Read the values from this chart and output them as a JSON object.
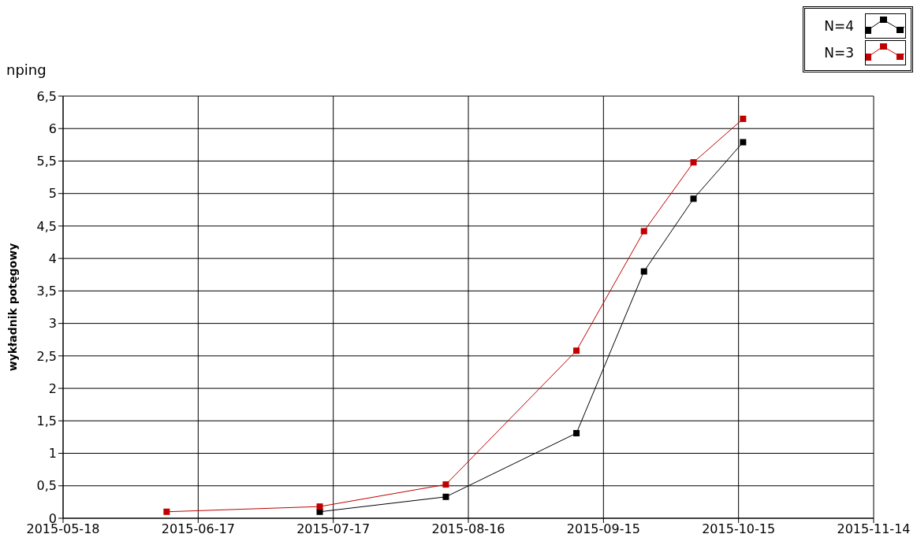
{
  "chart_data": {
    "type": "line",
    "title": "nping",
    "ylabel": "wykładnik potęgowy",
    "xlim": [
      "2015-05-18",
      "2015-11-14"
    ],
    "xticks": [
      "2015-05-18",
      "2015-06-17",
      "2015-07-17",
      "2015-08-16",
      "2015-09-15",
      "2015-10-15",
      "2015-11-14"
    ],
    "ylim": [
      0,
      6.5
    ],
    "yticks": [
      {
        "value": 0,
        "label": "0"
      },
      {
        "value": 0.5,
        "label": "0,5"
      },
      {
        "value": 1,
        "label": "1"
      },
      {
        "value": 1.5,
        "label": "1,5"
      },
      {
        "value": 2,
        "label": "2"
      },
      {
        "value": 2.5,
        "label": "2,5"
      },
      {
        "value": 3,
        "label": "3"
      },
      {
        "value": 3.5,
        "label": "3,5"
      },
      {
        "value": 4,
        "label": "4"
      },
      {
        "value": 4.5,
        "label": "4,5"
      },
      {
        "value": 5,
        "label": "5"
      },
      {
        "value": 5.5,
        "label": "5,5"
      },
      {
        "value": 6,
        "label": "6"
      },
      {
        "value": 6.5,
        "label": "6,5"
      }
    ],
    "grid": true,
    "legend": "top right",
    "marker": "square",
    "line_style": "solid",
    "series": [
      {
        "name": "N=4",
        "color": "#000000",
        "x": [
          "2015-07-14",
          "2015-08-11",
          "2015-09-09",
          "2015-09-24",
          "2015-10-05",
          "2015-10-16"
        ],
        "values": [
          0.1,
          0.33,
          1.31,
          3.8,
          4.92,
          5.79
        ]
      },
      {
        "name": "N=3",
        "color": "#c00000",
        "x": [
          "2015-06-10",
          "2015-07-14",
          "2015-08-11",
          "2015-09-09",
          "2015-09-24",
          "2015-10-05",
          "2015-10-16"
        ],
        "values": [
          0.1,
          0.18,
          0.52,
          2.58,
          4.42,
          5.48,
          6.15
        ]
      }
    ]
  }
}
